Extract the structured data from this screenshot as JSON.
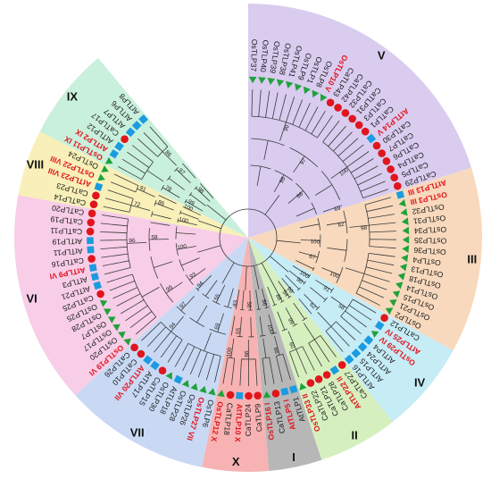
{
  "colors": {
    "rice_marker": "#1fa33a",
    "pepper_marker": "#e0151d",
    "arabidopsis_marker": "#1b9be0",
    "highlight_text": "#e0151d"
  },
  "clades": [
    {
      "label": "V",
      "color": "#d9ccef",
      "leaves": [
        {
          "name": "OsTLP37",
          "sp": "rice"
        },
        {
          "name": "OsTLP40",
          "sp": "rice"
        },
        {
          "name": "OsTLP39",
          "sp": "rice"
        },
        {
          "name": "OsTLP38",
          "sp": "rice"
        },
        {
          "name": "OsTLP41",
          "sp": "rice"
        },
        {
          "name": "OsTLP9",
          "sp": "rice"
        },
        {
          "name": "OsTLP1",
          "sp": "rice"
        },
        {
          "name": "OsTLP8",
          "sp": "rice"
        },
        {
          "name": "OsTLP10 V",
          "sp": "rice",
          "hl": true
        },
        {
          "name": "CaTLP43",
          "sp": "pepper"
        },
        {
          "name": "CaTLP42",
          "sp": "pepper"
        },
        {
          "name": "CaTLP32",
          "sp": "pepper"
        },
        {
          "name": "CaTLP31",
          "sp": "pepper"
        },
        {
          "name": "CaTLP3",
          "sp": "pepper"
        },
        {
          "name": "CaTLP1",
          "sp": "pepper"
        },
        {
          "name": "AtTLP14 V",
          "sp": "arabidopsis",
          "hl": true
        },
        {
          "name": "CaTLP30",
          "sp": "pepper"
        },
        {
          "name": "CaTLP7",
          "sp": "pepper"
        },
        {
          "name": "CaTLP6",
          "sp": "pepper"
        },
        {
          "name": "CaTLP4",
          "sp": "pepper"
        },
        {
          "name": "CaTLP5",
          "sp": "pepper"
        },
        {
          "name": "CaTLP29",
          "sp": "pepper"
        }
      ]
    },
    {
      "label": "III",
      "color": "#f8d9bd",
      "leaves": [
        {
          "name": "AtTLP13 III",
          "sp": "arabidopsis",
          "hl": true
        },
        {
          "name": "OsTLP3 III",
          "sp": "rice",
          "hl": true
        },
        {
          "name": "OsTLP32",
          "sp": "rice"
        },
        {
          "name": "OsTLP31",
          "sp": "rice"
        },
        {
          "name": "OsTLP34",
          "sp": "rice"
        },
        {
          "name": "OsTLP35",
          "sp": "rice"
        },
        {
          "name": "OsTLP36",
          "sp": "rice"
        },
        {
          "name": "OsTLP4",
          "sp": "rice"
        },
        {
          "name": "OsTLP13",
          "sp": "rice"
        },
        {
          "name": "OsTLP18",
          "sp": "rice"
        },
        {
          "name": "OsTLP14",
          "sp": "rice"
        },
        {
          "name": "OsTLP15",
          "sp": "rice"
        },
        {
          "name": "OsTLP21",
          "sp": "rice"
        },
        {
          "name": "OsTLP2",
          "sp": "rice"
        }
      ]
    },
    {
      "label": "IV",
      "color": "#c6ecf6",
      "leaves": [
        {
          "name": "CaTLP12",
          "sp": "pepper"
        },
        {
          "name": "AtTLP25 IV",
          "sp": "arabidopsis",
          "hl": true
        },
        {
          "name": "OsTLP29 IV",
          "sp": "rice",
          "hl": true
        },
        {
          "name": "AtTLP4",
          "sp": "arabidopsis"
        },
        {
          "name": "AtTLP24",
          "sp": "arabidopsis"
        },
        {
          "name": "AtTLP15",
          "sp": "arabidopsis"
        },
        {
          "name": "AtTLP16",
          "sp": "arabidopsis"
        }
      ]
    },
    {
      "label": "II",
      "color": "#d6efbf",
      "leaves": [
        {
          "name": "CaTLP27",
          "sp": "pepper"
        },
        {
          "name": "AtTLP22 II",
          "sp": "arabidopsis",
          "hl": true
        },
        {
          "name": "CaTLP28",
          "sp": "pepper"
        },
        {
          "name": "CaTLP21",
          "sp": "pepper"
        },
        {
          "name": "CaTLP22",
          "sp": "pepper"
        },
        {
          "name": "OsTLP33 II",
          "sp": "rice",
          "hl": true
        }
      ]
    },
    {
      "label": "I",
      "color": "#b7b7b7",
      "leaves": [
        {
          "name": "AtTLP1",
          "sp": "arabidopsis"
        },
        {
          "name": "AtTLP5 I",
          "sp": "arabidopsis",
          "hl": true
        },
        {
          "name": "CaTLP13",
          "sp": "pepper"
        },
        {
          "name": "OsTLP16 I",
          "sp": "rice",
          "hl": true
        }
      ]
    },
    {
      "label": "X",
      "color": "#f7b3b3",
      "leaves": [
        {
          "name": "CaTLP9",
          "sp": "pepper"
        },
        {
          "name": "CaTLP24",
          "sp": "pepper"
        },
        {
          "name": "AtTLP10 X",
          "sp": "arabidopsis",
          "hl": true
        },
        {
          "name": "CaTLP18",
          "sp": "pepper"
        },
        {
          "name": "OsTLP12 X",
          "sp": "rice",
          "hl": true
        }
      ]
    },
    {
      "label": "VII",
      "color": "#c9d9f4",
      "leaves": [
        {
          "name": "OsTLP6",
          "sp": "rice"
        },
        {
          "name": "OsTLP27 VII",
          "sp": "rice",
          "hl": true
        },
        {
          "name": "OsTLP26",
          "sp": "rice"
        },
        {
          "name": "OsTLP28",
          "sp": "rice"
        },
        {
          "name": "AtTLP18",
          "sp": "arabidopsis"
        },
        {
          "name": "OsTLP30",
          "sp": "rice"
        },
        {
          "name": "CaTLP15",
          "sp": "pepper"
        },
        {
          "name": "AtTLP17",
          "sp": "arabidopsis"
        },
        {
          "name": "AtTLP20 VII",
          "sp": "arabidopsis",
          "hl": true
        },
        {
          "name": "CaTLP10",
          "sp": "pepper"
        },
        {
          "name": "CaTLP26",
          "sp": "pepper"
        }
      ]
    },
    {
      "label": "VI",
      "color": "#f7cde7",
      "leaves": [
        {
          "name": "OsTLP19 VI",
          "sp": "rice",
          "hl": true
        },
        {
          "name": "OsTLP20",
          "sp": "rice"
        },
        {
          "name": "OsTLP17",
          "sp": "rice"
        },
        {
          "name": "OsTLP7",
          "sp": "rice"
        },
        {
          "name": "OsTLP28",
          "sp": "rice"
        },
        {
          "name": "OsTLP25",
          "sp": "rice"
        },
        {
          "name": "CaTLP25",
          "sp": "pepper"
        },
        {
          "name": "AtTLP21",
          "sp": "arabidopsis"
        },
        {
          "name": "AtTLP3",
          "sp": "arabidopsis"
        },
        {
          "name": "AtTLP9 VI",
          "sp": "arabidopsis",
          "hl": true
        },
        {
          "name": "CaTLP16",
          "sp": "pepper"
        },
        {
          "name": "AtTLP11",
          "sp": "arabidopsis"
        },
        {
          "name": "AtTLP19",
          "sp": "arabidopsis"
        },
        {
          "name": "CaTLP11",
          "sp": "pepper"
        },
        {
          "name": "CaTLP19",
          "sp": "pepper"
        },
        {
          "name": "CaTLP20",
          "sp": "pepper"
        }
      ]
    },
    {
      "label": "VIII",
      "color": "#f8f0b8",
      "leaves": [
        {
          "name": "CaTLP14",
          "sp": "pepper"
        },
        {
          "name": "CaTLP23",
          "sp": "pepper"
        },
        {
          "name": "AtTLP23 VIII",
          "sp": "arabidopsis",
          "hl": true
        },
        {
          "name": "OsTLP22 VIII",
          "sp": "rice",
          "hl": true
        },
        {
          "name": "OsTLP24",
          "sp": "rice"
        }
      ]
    },
    {
      "label": "IX",
      "color": "#c9f0dc",
      "leaves": [
        {
          "name": "OsTLP11 IX",
          "sp": "rice",
          "hl": true
        },
        {
          "name": "AtTLP2 IX",
          "sp": "arabidopsis",
          "hl": true
        },
        {
          "name": "AtTLP12",
          "sp": "arabidopsis"
        },
        {
          "name": "CaTLP17",
          "sp": "pepper"
        },
        {
          "name": "AtTLP7",
          "sp": "arabidopsis"
        },
        {
          "name": "AtTLP6",
          "sp": "arabidopsis"
        },
        {
          "name": "AtTLP8",
          "sp": "arabidopsis"
        }
      ]
    }
  ],
  "bootstrap": [
    "90",
    "100",
    "97",
    "69",
    "95",
    "86",
    "98",
    "82",
    "100",
    "100",
    "67",
    "58",
    "91",
    "62",
    "100",
    "90",
    "99",
    "60",
    "99",
    "54",
    "88",
    "66",
    "100",
    "86",
    "99",
    "100",
    "55",
    "58",
    "83",
    "94",
    "69",
    "97",
    "55",
    "94",
    "96",
    "99",
    "59",
    "93",
    "100",
    "72",
    "91",
    "86",
    "100",
    "100",
    "86",
    "78",
    "97",
    "99",
    "98"
  ]
}
